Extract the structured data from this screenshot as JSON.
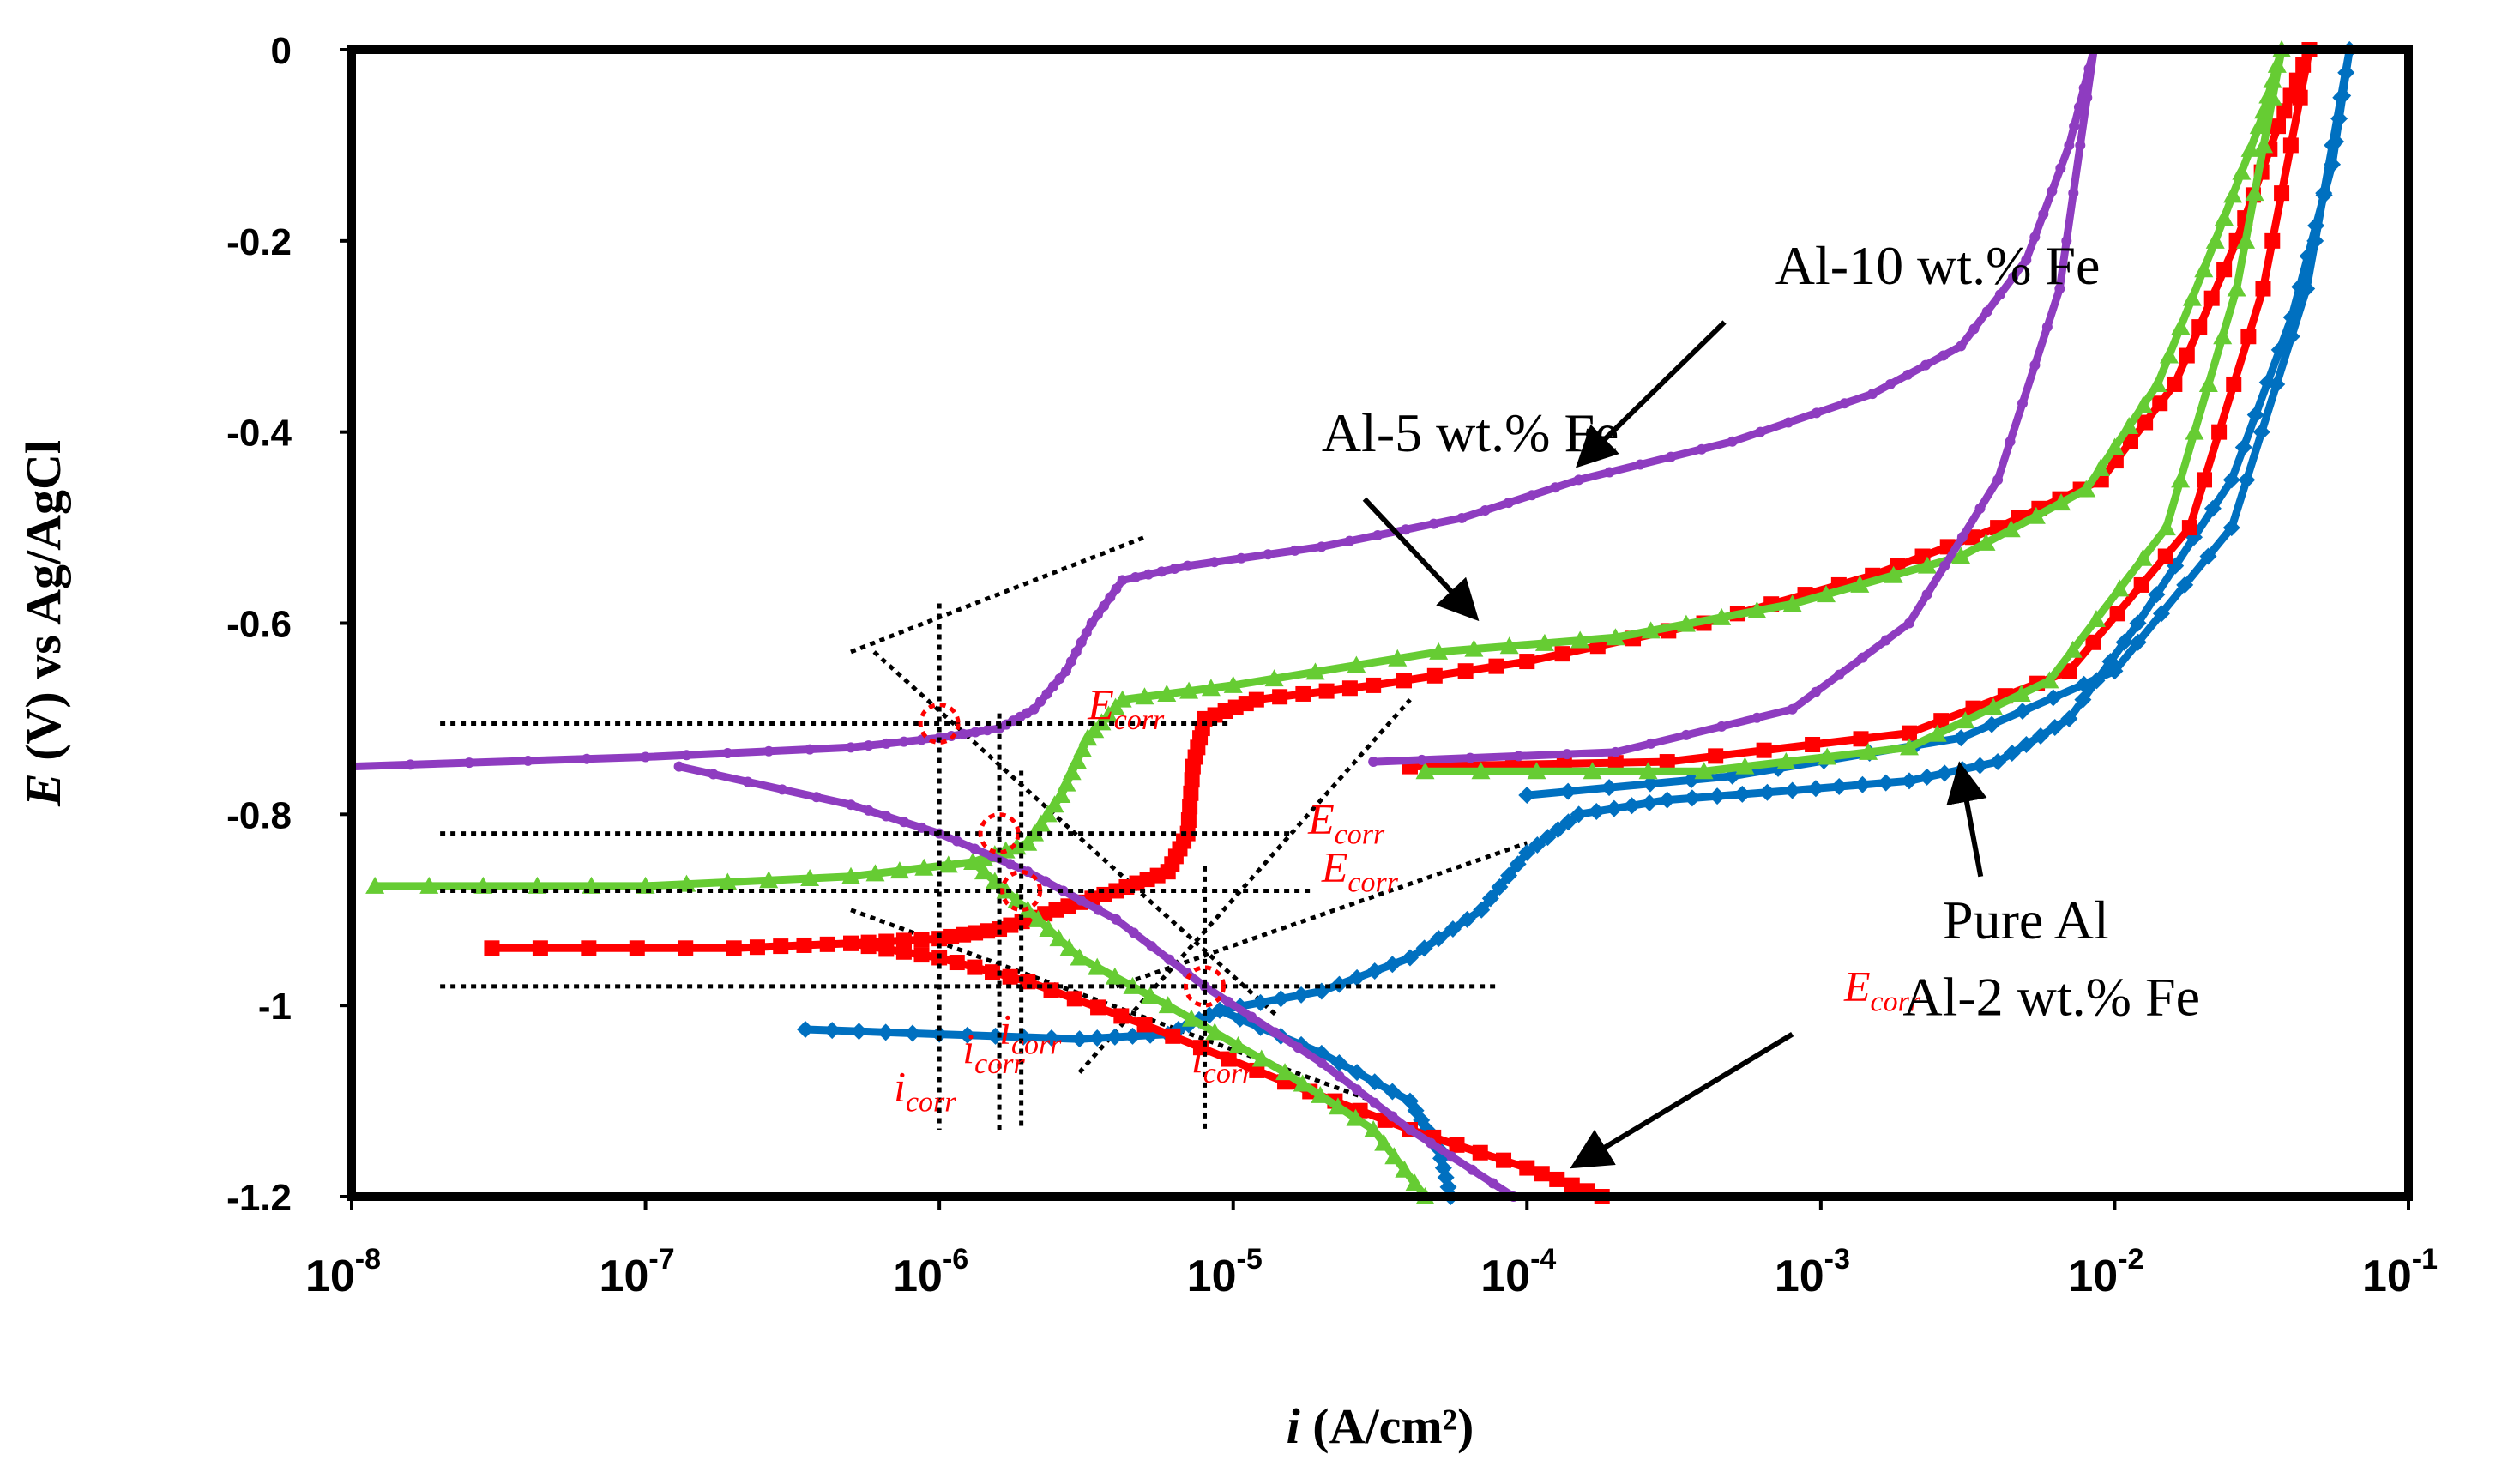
{
  "chart_data": {
    "type": "line",
    "title": "",
    "xscale": "log",
    "xlim": [
      1e-08,
      0.1
    ],
    "ylim": [
      -1.2,
      0
    ],
    "xlabel": {
      "prefix": "i",
      "rest": " (A/cm²)"
    },
    "ylabel": {
      "prefix": "E",
      "rest": " (V) vs Ag/AgCl"
    },
    "xticks": [
      {
        "base": "10",
        "exp": "-8",
        "value": 1e-08
      },
      {
        "base": "10",
        "exp": "-7",
        "value": 1e-07
      },
      {
        "base": "10",
        "exp": "-6",
        "value": 1e-06
      },
      {
        "base": "10",
        "exp": "-5",
        "value": 1e-05
      },
      {
        "base": "10",
        "exp": "-4",
        "value": 0.0001
      },
      {
        "base": "10",
        "exp": "-3",
        "value": 0.001
      },
      {
        "base": "10",
        "exp": "-2",
        "value": 0.01
      },
      {
        "base": "10",
        "exp": "-1",
        "value": 0.1
      }
    ],
    "yticks": [
      {
        "label": "0",
        "value": 0
      },
      {
        "label": "-0.2",
        "value": -0.2
      },
      {
        "label": "-0.4",
        "value": -0.4
      },
      {
        "label": "-0.6",
        "value": -0.6
      },
      {
        "label": "-0.8",
        "value": -0.8
      },
      {
        "label": "-1",
        "value": -1.0
      },
      {
        "label": "-1.2",
        "value": -1.2
      }
    ],
    "series": [
      {
        "name": "Pure Al",
        "color": "#0070c0",
        "marker": "diamond",
        "points": [
          [
            3.5e-07,
            -1.025
          ],
          [
            1e-06,
            -1.03
          ],
          [
            3e-06,
            -1.035
          ],
          [
            6e-06,
            -1.03
          ],
          [
            9e-06,
            -1.005
          ],
          [
            2e-05,
            -0.985
          ],
          [
            4e-05,
            -0.95
          ],
          [
            7e-05,
            -0.9
          ],
          [
            0.0001,
            -0.84
          ],
          [
            0.00015,
            -0.8
          ],
          [
            0.0003,
            -0.785
          ],
          [
            0.0008,
            -0.775
          ],
          [
            0.002,
            -0.765
          ],
          [
            0.004,
            -0.745
          ],
          [
            0.007,
            -0.7
          ],
          [
            0.012,
            -0.6
          ],
          [
            0.025,
            -0.45
          ],
          [
            0.04,
            -0.28
          ],
          [
            0.055,
            -0.12
          ],
          [
            0.063,
            0
          ]
        ],
        "return": [
          [
            0.063,
            0
          ],
          [
            0.045,
            -0.25
          ],
          [
            0.025,
            -0.5
          ],
          [
            0.01,
            -0.65
          ],
          [
            0.003,
            -0.72
          ],
          [
            0.0005,
            -0.76
          ],
          [
            0.0001,
            -0.78
          ]
        ],
        "cathodic": [
          [
            9e-06,
            -1.005
          ],
          [
            2e-05,
            -1.05
          ],
          [
            4e-05,
            -1.1
          ],
          [
            5e-05,
            -1.15
          ],
          [
            5.5e-05,
            -1.2
          ]
        ]
      },
      {
        "name": "Al-2 wt.% Fe",
        "color": "#ff0000",
        "marker": "square",
        "points": [
          [
            3e-08,
            -0.94
          ],
          [
            2e-07,
            -0.94
          ],
          [
            5e-07,
            -0.935
          ],
          [
            1e-06,
            -0.93
          ],
          [
            1.6e-06,
            -0.92
          ],
          [
            2.5e-06,
            -0.9
          ],
          [
            4e-06,
            -0.88
          ],
          [
            6e-06,
            -0.86
          ],
          [
            7e-06,
            -0.82
          ],
          [
            7.3e-06,
            -0.75
          ],
          [
            8e-06,
            -0.7
          ],
          [
            1.2e-05,
            -0.68
          ],
          [
            3e-05,
            -0.665
          ],
          [
            0.0001,
            -0.64
          ],
          [
            0.0004,
            -0.6
          ],
          [
            0.0015,
            -0.55
          ],
          [
            0.004,
            -0.5
          ],
          [
            0.009,
            -0.45
          ],
          [
            0.016,
            -0.35
          ],
          [
            0.026,
            -0.2
          ],
          [
            0.036,
            -0.08
          ],
          [
            0.046,
            0
          ]
        ],
        "return": [
          [
            0.046,
            0
          ],
          [
            0.032,
            -0.25
          ],
          [
            0.018,
            -0.5
          ],
          [
            0.007,
            -0.65
          ],
          [
            0.002,
            -0.715
          ],
          [
            0.0003,
            -0.745
          ],
          [
            4e-05,
            -0.75
          ]
        ],
        "cathodic": [
          [
            5e-07,
            -0.935
          ],
          [
            1e-06,
            -0.95
          ],
          [
            2e-06,
            -0.975
          ],
          [
            5e-06,
            -1.02
          ],
          [
            1.5e-05,
            -1.08
          ],
          [
            4e-05,
            -1.13
          ],
          [
            0.0001,
            -1.17
          ],
          [
            0.00018,
            -1.2
          ]
        ]
      },
      {
        "name": "Al-5 wt.% Fe",
        "color": "#66cc33",
        "marker": "triangle",
        "points": [
          [
            1.2e-08,
            -0.875
          ],
          [
            1e-07,
            -0.875
          ],
          [
            5e-07,
            -0.865
          ],
          [
            1.3e-06,
            -0.85
          ],
          [
            2e-06,
            -0.83
          ],
          [
            2.6e-06,
            -0.78
          ],
          [
            3.2e-06,
            -0.72
          ],
          [
            4.2e-06,
            -0.68
          ],
          [
            1e-05,
            -0.665
          ],
          [
            5e-05,
            -0.63
          ],
          [
            0.0002,
            -0.615
          ],
          [
            0.0008,
            -0.58
          ],
          [
            0.003,
            -0.53
          ],
          [
            0.008,
            -0.46
          ],
          [
            0.014,
            -0.35
          ],
          [
            0.022,
            -0.2
          ],
          [
            0.031,
            -0.08
          ],
          [
            0.037,
            0
          ]
        ],
        "return": [
          [
            0.037,
            0
          ],
          [
            0.026,
            -0.25
          ],
          [
            0.015,
            -0.5
          ],
          [
            0.006,
            -0.66
          ],
          [
            0.002,
            -0.73
          ],
          [
            0.0004,
            -0.755
          ],
          [
            4.5e-05,
            -0.755
          ]
        ],
        "cathodic": [
          [
            1.3e-06,
            -0.85
          ],
          [
            2e-06,
            -0.9
          ],
          [
            3e-06,
            -0.95
          ],
          [
            6e-06,
            -1.0
          ],
          [
            1.5e-05,
            -1.07
          ],
          [
            3e-05,
            -1.13
          ],
          [
            4.5e-05,
            -1.2
          ]
        ]
      },
      {
        "name": "Al-10 wt.% Fe",
        "color": "#8e3cc0",
        "marker": "star",
        "points": [
          [
            1e-08,
            -0.75
          ],
          [
            1e-07,
            -0.74
          ],
          [
            5e-07,
            -0.73
          ],
          [
            1e-06,
            -0.72
          ],
          [
            1.6e-06,
            -0.71
          ],
          [
            2.1e-06,
            -0.69
          ],
          [
            2.7e-06,
            -0.65
          ],
          [
            3.3e-06,
            -0.6
          ],
          [
            4.2e-06,
            -0.555
          ],
          [
            7e-06,
            -0.54
          ],
          [
            2e-05,
            -0.52
          ],
          [
            6e-05,
            -0.49
          ],
          [
            0.00015,
            -0.45
          ],
          [
            0.0005,
            -0.41
          ],
          [
            0.0015,
            -0.36
          ],
          [
            0.003,
            -0.31
          ],
          [
            0.005,
            -0.22
          ],
          [
            0.007,
            -0.1
          ],
          [
            0.0085,
            0
          ]
        ],
        "return": [
          [
            0.0085,
            0
          ],
          [
            0.0065,
            -0.25
          ],
          [
            0.004,
            -0.45
          ],
          [
            0.002,
            -0.6
          ],
          [
            0.0008,
            -0.69
          ],
          [
            0.0002,
            -0.735
          ],
          [
            3e-05,
            -0.745
          ]
        ],
        "cathodic": [
          [
            1.3e-07,
            -0.75
          ],
          [
            5e-07,
            -0.79
          ],
          [
            1e-06,
            -0.82
          ],
          [
            2e-06,
            -0.86
          ],
          [
            4e-06,
            -0.91
          ],
          [
            8e-06,
            -0.98
          ],
          [
            2e-05,
            -1.06
          ],
          [
            4e-05,
            -1.13
          ],
          [
            9e-05,
            -1.2
          ]
        ]
      }
    ],
    "tafel_lines": [
      {
        "color": "#000000",
        "from": [
          6e-07,
          -0.63
        ],
        "to": [
          1.4e-05,
          -1.01
        ]
      },
      {
        "color": "#000000",
        "from": [
          5e-07,
          -0.63
        ],
        "to": [
          5e-06,
          -0.51
        ]
      },
      {
        "color": "#000000",
        "from": [
          5e-07,
          -0.9
        ],
        "to": [
          3e-05,
          -1.1
        ]
      },
      {
        "color": "#000000",
        "from": [
          4e-06,
          -0.98
        ],
        "to": [
          0.0001,
          -0.83
        ]
      },
      {
        "color": "#000000",
        "from": [
          3e-06,
          -1.07
        ],
        "to": [
          4e-05,
          -0.68
        ]
      }
    ],
    "intersections": [
      {
        "i": 1e-06,
        "E": -0.705
      },
      {
        "i": 1.6e-06,
        "E": -0.82
      },
      {
        "i": 1.9e-06,
        "E": -0.88
      },
      {
        "i": 8e-06,
        "E": -0.98
      }
    ],
    "corr_labels": [
      {
        "base": "E",
        "sub": "corr",
        "i": 3.2e-06,
        "E": -0.7
      },
      {
        "base": "E",
        "sub": "corr",
        "i": 1.8e-05,
        "E": -0.82
      },
      {
        "base": "E",
        "sub": "corr",
        "i": 2e-05,
        "E": -0.87
      },
      {
        "base": "E",
        "sub": "corr",
        "i": 0.0012,
        "E": -0.995
      },
      {
        "base": "i",
        "sub": "corr",
        "i": 7e-07,
        "E": -1.1
      },
      {
        "base": "i",
        "sub": "corr",
        "i": 1.2e-06,
        "E": -1.06
      },
      {
        "base": "i",
        "sub": "corr",
        "i": 1.6e-06,
        "E": -1.04
      },
      {
        "base": "i",
        "sub": "corr",
        "i": 7.2e-06,
        "E": -1.07
      }
    ],
    "annotations": [
      {
        "text": "Al-10 wt.% Fe",
        "text_at": [
          0.0007,
          -0.245
        ],
        "arrow_from": [
          0.00047,
          -0.285
        ],
        "arrow_to": [
          0.000155,
          -0.43
        ]
      },
      {
        "text": "Al-5 wt.% Fe",
        "text_at": [
          2e-05,
          -0.42
        ],
        "arrow_from": [
          2.8e-05,
          -0.47
        ],
        "arrow_to": [
          6.5e-05,
          -0.59
        ]
      },
      {
        "text": "Pure Al",
        "text_at": [
          0.0026,
          -0.93
        ],
        "arrow_from": [
          0.0035,
          -0.865
        ],
        "arrow_to": [
          0.003,
          -0.755
        ]
      },
      {
        "text": "Al-2 wt.% Fe",
        "text_at": [
          0.0019,
          -1.01
        ],
        "arrow_from": [
          0.0008,
          -1.03
        ],
        "arrow_to": [
          0.00015,
          -1.165
        ]
      }
    ]
  }
}
